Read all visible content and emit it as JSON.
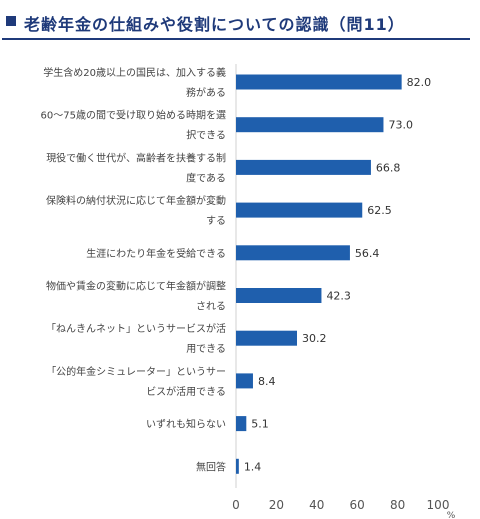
{
  "header": {
    "bullet_icon": "square-bullet-icon",
    "title": "老齢年金の仕組みや役割についての認識（問11）"
  },
  "chart_data": {
    "type": "bar",
    "orientation": "horizontal",
    "title": "老齢年金の仕組みや役割についての認識（問11）",
    "categories": [
      [
        "学生含め20歳以上の国民は、加入する義",
        "務がある"
      ],
      [
        "60～75歳の間で受け取り始める時期を選",
        "択できる"
      ],
      [
        "現役で働く世代が、高齢者を扶養する制",
        "度である"
      ],
      [
        "保険料の納付状況に応じて年金額が変動",
        "する"
      ],
      [
        "生涯にわたり年金を受給できる"
      ],
      [
        "物価や賃金の変動に応じて年金額が調整",
        "される"
      ],
      [
        "「ねんきんネット」というサービスが活",
        "用できる"
      ],
      [
        "「公的年金シミュレーター」というサー",
        "ビスが活用できる"
      ],
      [
        "いずれも知らない"
      ],
      [
        "無回答"
      ]
    ],
    "values": [
      82.0,
      73.0,
      66.8,
      62.5,
      56.4,
      42.3,
      30.2,
      8.4,
      5.1,
      1.4
    ],
    "value_labels": [
      "82.0",
      "73.0",
      "66.8",
      "62.5",
      "56.4",
      "42.3",
      "30.2",
      "8.4",
      "5.1",
      "1.4"
    ],
    "xlim": [
      0,
      100
    ],
    "xticks": [
      "0",
      "20",
      "40",
      "60",
      "80",
      "100"
    ],
    "x_unit": "%",
    "bar_color": "#1f5fad",
    "grid": false,
    "legend": "none"
  }
}
